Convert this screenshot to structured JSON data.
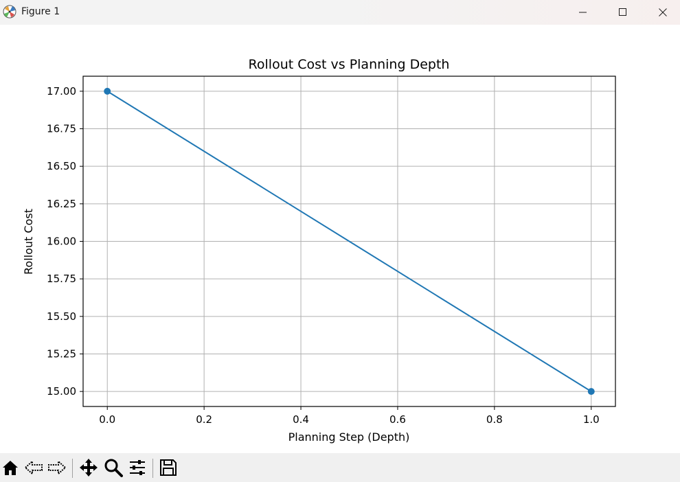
{
  "window": {
    "title": "Figure 1"
  },
  "icons": {
    "app": "matplotlib-icon",
    "minimize": "minimize-icon",
    "maximize": "maximize-icon",
    "close": "close-icon"
  },
  "toolbar": {
    "buttons": [
      "home-icon",
      "back-icon",
      "forward-icon",
      "pan-icon",
      "zoom-icon",
      "configure-subplots-icon",
      "save-icon"
    ]
  },
  "chart_data": {
    "type": "line",
    "title": "Rollout Cost vs Planning Depth",
    "xlabel": "Planning Step (Depth)",
    "ylabel": "Rollout Cost",
    "x": [
      0.0,
      1.0
    ],
    "series": [
      {
        "values": [
          17.0,
          15.0
        ],
        "color": "#1f77b4",
        "marker": "circle"
      }
    ],
    "xlim": [
      -0.05,
      1.05
    ],
    "ylim": [
      14.9,
      17.1
    ],
    "xticks": [
      0.0,
      0.2,
      0.4,
      0.6,
      0.8,
      1.0
    ],
    "xtick_labels": [
      "0.0",
      "0.2",
      "0.4",
      "0.6",
      "0.8",
      "1.0"
    ],
    "yticks": [
      15.0,
      15.25,
      15.5,
      15.75,
      16.0,
      16.25,
      16.5,
      16.75,
      17.0
    ],
    "ytick_labels": [
      "15.00",
      "15.25",
      "15.50",
      "15.75",
      "16.00",
      "16.25",
      "16.50",
      "16.75",
      "17.00"
    ],
    "grid": true,
    "grid_color": "#b0b0b0"
  }
}
